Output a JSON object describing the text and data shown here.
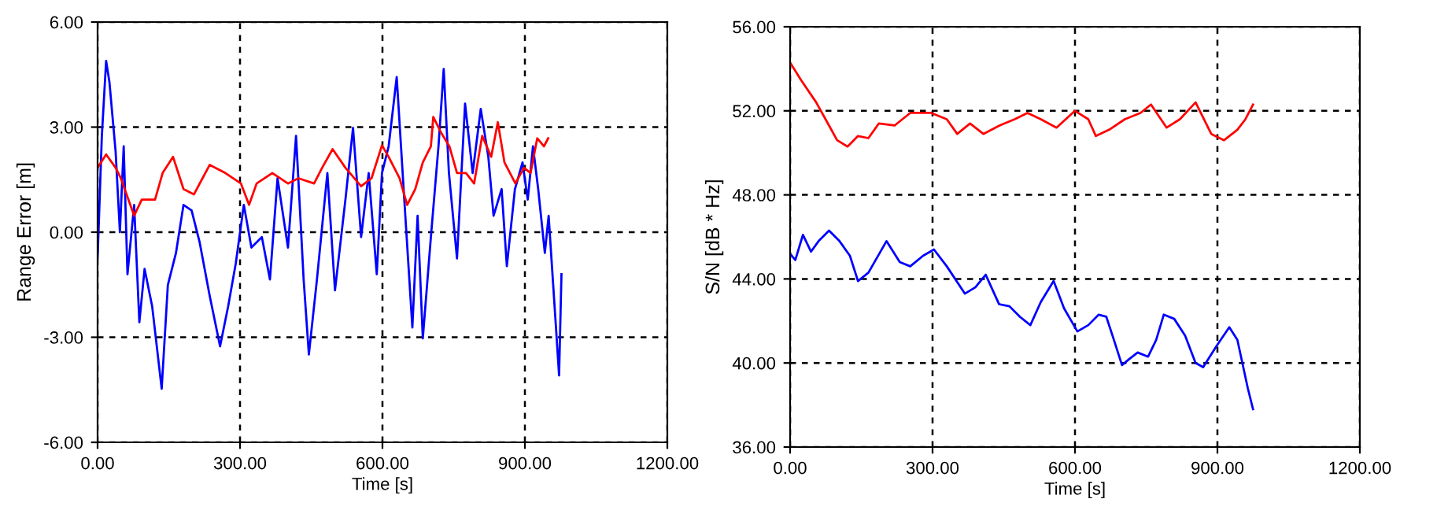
{
  "chart_data": [
    {
      "type": "line",
      "xlabel": "Time [s]",
      "ylabel": "Range Error [m]",
      "xlim": [
        0,
        1200
      ],
      "ylim": [
        -6,
        6
      ],
      "xticks": [
        {
          "value": 0,
          "label": "0.00"
        },
        {
          "value": 300,
          "label": "300.00"
        },
        {
          "value": 600,
          "label": "600.00"
        },
        {
          "value": 900,
          "label": "900.00"
        },
        {
          "value": 1200,
          "label": "1200.00"
        }
      ],
      "yticks": [
        {
          "value": -6,
          "label": "-6.00"
        },
        {
          "value": -3,
          "label": "-3.00"
        },
        {
          "value": 0,
          "label": "0.00"
        },
        {
          "value": 3,
          "label": "3.00"
        },
        {
          "value": 6,
          "label": "6.00"
        }
      ],
      "grid": true,
      "legend": false,
      "series": [
        {
          "color": "#0000ff",
          "x": [
            0,
            9,
            18,
            25,
            38,
            47,
            55,
            63,
            77,
            88,
            99,
            115,
            135,
            148,
            165,
            181,
            198,
            215,
            236,
            258,
            275,
            291,
            308,
            324,
            346,
            363,
            379,
            401,
            418,
            434,
            445,
            462,
            484,
            500,
            522,
            538,
            555,
            571,
            588,
            599,
            613,
            630,
            646,
            663,
            674,
            685,
            702,
            718,
            729,
            740,
            757,
            774,
            790,
            807,
            823,
            834,
            851,
            862,
            879,
            895,
            906,
            917,
            928,
            942,
            950,
            964,
            972,
            977
          ],
          "values": [
            -0.75,
            2.75,
            4.89,
            4.28,
            2.3,
            0,
            2.45,
            -1.2,
            0.78,
            -2.57,
            -1.05,
            -2.12,
            -4.47,
            -1.51,
            -0.6,
            0.78,
            0.62,
            -0.29,
            -1.81,
            -3.26,
            -2.12,
            -0.9,
            0.78,
            -0.44,
            -0.14,
            -1.35,
            1.54,
            -0.44,
            2.75,
            -1.35,
            -3.49,
            -1.35,
            1.69,
            -1.66,
            0.93,
            2.98,
            -0.14,
            1.69,
            -1.2,
            1.69,
            2.45,
            4.43,
            0.93,
            -2.72,
            0.47,
            -3.03,
            -0.14,
            2.45,
            4.66,
            1.69,
            -0.75,
            3.67,
            1.69,
            3.52,
            2.15,
            0.47,
            1.23,
            -0.97,
            1.23,
            1.99,
            0.93,
            2.45,
            1.23,
            -0.59,
            0.47,
            -2.42,
            -4.09,
            -1.2
          ]
        },
        {
          "color": "#ff0000",
          "x": [
            0,
            18,
            38,
            49,
            77,
            93,
            121,
            137,
            159,
            181,
            203,
            236,
            269,
            302,
            319,
            335,
            368,
            401,
            423,
            456,
            473,
            495,
            522,
            555,
            577,
            599,
            613,
            636,
            652,
            669,
            685,
            702,
            707,
            724,
            741,
            757,
            776,
            793,
            810,
            829,
            843,
            857,
            880,
            898,
            912,
            926,
            940,
            949
          ],
          "values": [
            1.84,
            2.22,
            1.84,
            1.54,
            0.47,
            0.93,
            0.93,
            1.69,
            2.15,
            1.23,
            1.08,
            1.92,
            1.69,
            1.39,
            0.78,
            1.39,
            1.69,
            1.39,
            1.54,
            1.39,
            1.84,
            2.37,
            1.84,
            1.31,
            1.54,
            2.48,
            2.15,
            1.54,
            0.78,
            1.23,
            1.99,
            2.45,
            3.29,
            2.83,
            2.45,
            1.69,
            1.69,
            1.39,
            2.75,
            2.15,
            3.14,
            1.99,
            1.39,
            1.84,
            1.69,
            2.68,
            2.45,
            2.68
          ]
        }
      ]
    },
    {
      "type": "line",
      "xlabel": "Time [s]",
      "ylabel": "S/N [dB * Hz]",
      "xlim": [
        0,
        1200
      ],
      "ylim": [
        36,
        56
      ],
      "xticks": [
        {
          "value": 0,
          "label": "0.00"
        },
        {
          "value": 300,
          "label": "300.00"
        },
        {
          "value": 600,
          "label": "600.00"
        },
        {
          "value": 900,
          "label": "900.00"
        },
        {
          "value": 1200,
          "label": "1200.00"
        }
      ],
      "yticks": [
        {
          "value": 36,
          "label": "36.00"
        },
        {
          "value": 40,
          "label": "40.00"
        },
        {
          "value": 44,
          "label": "44.00"
        },
        {
          "value": 48,
          "label": "48.00"
        },
        {
          "value": 52,
          "label": "52.00"
        },
        {
          "value": 56,
          "label": "56.00"
        }
      ],
      "grid": true,
      "legend": false,
      "series": [
        {
          "color": "#ff0000",
          "x": [
            0,
            22,
            55,
            82,
            99,
            121,
            143,
            165,
            187,
            220,
            253,
            297,
            330,
            352,
            379,
            407,
            441,
            473,
            500,
            528,
            561,
            600,
            628,
            644,
            672,
            705,
            738,
            760,
            793,
            821,
            854,
            887,
            914,
            942,
            959,
            975
          ],
          "values": [
            54.3,
            53.5,
            52.4,
            51.3,
            50.6,
            50.3,
            50.8,
            50.7,
            51.4,
            51.3,
            51.9,
            51.9,
            51.6,
            50.9,
            51.4,
            50.9,
            51.3,
            51.6,
            51.9,
            51.6,
            51.2,
            52.0,
            51.6,
            50.8,
            51.1,
            51.6,
            51.9,
            52.3,
            51.2,
            51.6,
            52.4,
            50.9,
            50.6,
            51.1,
            51.6,
            52.3
          ]
        },
        {
          "color": "#0000ff",
          "x": [
            0,
            11,
            27,
            44,
            60,
            82,
            104,
            126,
            143,
            165,
            203,
            231,
            253,
            280,
            303,
            330,
            368,
            390,
            412,
            440,
            462,
            484,
            506,
            528,
            555,
            577,
            605,
            628,
            650,
            666,
            682,
            699,
            715,
            732,
            754,
            771,
            787,
            809,
            832,
            854,
            870,
            898,
            925,
            942,
            964,
            975
          ],
          "values": [
            45.2,
            44.9,
            46.1,
            45.3,
            45.8,
            46.3,
            45.8,
            45.1,
            43.9,
            44.3,
            45.8,
            44.8,
            44.6,
            45.1,
            45.4,
            44.6,
            43.3,
            43.6,
            44.2,
            42.8,
            42.7,
            42.2,
            41.8,
            42.9,
            43.9,
            42.6,
            41.5,
            41.8,
            42.3,
            42.2,
            41.1,
            39.9,
            40.2,
            40.5,
            40.3,
            41.1,
            42.3,
            42.1,
            41.3,
            40.0,
            39.8,
            40.8,
            41.7,
            41.1,
            38.8,
            37.8
          ]
        }
      ]
    }
  ]
}
